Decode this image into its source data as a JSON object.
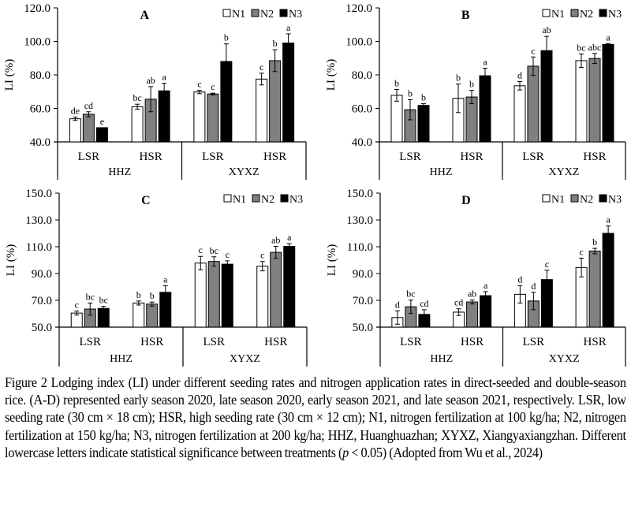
{
  "chart_data": [
    {
      "type": "bar",
      "panel": "A",
      "title": "A",
      "ylabel": "LI (%)",
      "ylim": [
        40,
        120
      ],
      "yticks": [
        "40.0",
        "60.0",
        "80.0",
        "100.0",
        "120.0"
      ],
      "yticks_values": [
        40,
        60,
        80,
        100,
        120
      ],
      "groups": [
        "HHZ",
        "XYXZ"
      ],
      "categories": [
        "LSR",
        "HSR",
        "LSR",
        "HSR"
      ],
      "category_group": [
        "HHZ",
        "HHZ",
        "XYXZ",
        "XYXZ"
      ],
      "legend": [
        "N1",
        "N2",
        "N3"
      ],
      "legend_position": "top-right",
      "series": [
        {
          "name": "N1",
          "values": [
            53.8,
            61.0,
            69.8,
            77.5
          ],
          "errors": [
            1.0,
            1.5,
            1.0,
            3.5
          ],
          "letters": [
            "de",
            "bc",
            "c",
            "c"
          ]
        },
        {
          "name": "N2",
          "values": [
            56.5,
            65.5,
            68.6,
            88.5
          ],
          "errors": [
            1.5,
            7.5,
            0.5,
            6.5
          ],
          "letters": [
            "cd",
            "ab",
            "c",
            "b"
          ]
        },
        {
          "name": "N3",
          "values": [
            48.5,
            70.5,
            88.0,
            99.0
          ],
          "errors": [
            0.0,
            4.5,
            10.5,
            5.5
          ],
          "letters": [
            "e",
            "a",
            "b",
            "a"
          ]
        }
      ]
    },
    {
      "type": "bar",
      "panel": "B",
      "title": "B",
      "ylabel": "LI (%)",
      "ylim": [
        40,
        120
      ],
      "yticks": [
        "40.0",
        "60.0",
        "80.0",
        "100.0",
        "120.0"
      ],
      "yticks_values": [
        40,
        60,
        80,
        100,
        120
      ],
      "groups": [
        "HHZ",
        "XYXZ"
      ],
      "categories": [
        "LSR",
        "HSR",
        "LSR",
        "HSR"
      ],
      "category_group": [
        "HHZ",
        "HHZ",
        "XYXZ",
        "XYXZ"
      ],
      "legend": [
        "N1",
        "N2",
        "N3"
      ],
      "legend_position": "top-right",
      "series": [
        {
          "name": "N1",
          "values": [
            67.8,
            66.0,
            73.5,
            88.5
          ],
          "errors": [
            3.5,
            8.5,
            2.5,
            4.0
          ],
          "letters": [
            "b",
            "b",
            "d",
            "bc"
          ]
        },
        {
          "name": "N2",
          "values": [
            59.2,
            66.8,
            85.2,
            89.8
          ],
          "errors": [
            6.0,
            4.0,
            5.5,
            3.0
          ],
          "letters": [
            "b",
            "b",
            "c",
            "abc"
          ]
        },
        {
          "name": "N3",
          "values": [
            61.8,
            79.5,
            94.5,
            98.2
          ],
          "errors": [
            1.0,
            4.5,
            8.5,
            0.5
          ],
          "letters": [
            "b",
            "a",
            "ab",
            "a"
          ]
        }
      ]
    },
    {
      "type": "bar",
      "panel": "C",
      "title": "C",
      "ylabel": "LI (%)",
      "ylim": [
        50,
        150
      ],
      "yticks": [
        "50.0",
        "70.0",
        "90.0",
        "110.0",
        "130.0",
        "150.0"
      ],
      "yticks_values": [
        50,
        70,
        90,
        110,
        130,
        150
      ],
      "groups": [
        "HHZ",
        "XYXZ"
      ],
      "categories": [
        "LSR",
        "HSR",
        "LSR",
        "HSR"
      ],
      "category_group": [
        "HHZ",
        "HHZ",
        "XYXZ",
        "XYXZ"
      ],
      "legend": [
        "N1",
        "N2",
        "N3"
      ],
      "legend_position": "top-right",
      "series": [
        {
          "name": "N1",
          "values": [
            60.5,
            68.0,
            97.8,
            95.5
          ],
          "errors": [
            1.5,
            1.5,
            5.0,
            3.5
          ],
          "letters": [
            "c",
            "b",
            "c",
            "c"
          ]
        },
        {
          "name": "N2",
          "values": [
            63.5,
            67.2,
            99.0,
            105.8
          ],
          "errors": [
            4.5,
            1.5,
            3.5,
            4.5
          ],
          "letters": [
            "bc",
            "b",
            "bc",
            "ab"
          ]
        },
        {
          "name": "N3",
          "values": [
            64.0,
            76.0,
            97.0,
            110.3
          ],
          "errors": [
            1.5,
            5.0,
            2.5,
            2.0
          ],
          "letters": [
            "bc",
            "a",
            "c",
            "a"
          ]
        }
      ]
    },
    {
      "type": "bar",
      "panel": "D",
      "title": "D",
      "ylabel": "LI (%)",
      "ylim": [
        50,
        150
      ],
      "yticks": [
        "50.0",
        "70.0",
        "90.0",
        "110.0",
        "130.0",
        "150.0"
      ],
      "yticks_values": [
        50,
        70,
        90,
        110,
        130,
        150
      ],
      "groups": [
        "HHZ",
        "XYXZ"
      ],
      "categories": [
        "LSR",
        "HSR",
        "LSR",
        "HSR"
      ],
      "category_group": [
        "HHZ",
        "HHZ",
        "XYXZ",
        "XYXZ"
      ],
      "legend": [
        "N1",
        "N2",
        "N3"
      ],
      "legend_position": "top-right",
      "series": [
        {
          "name": "N1",
          "values": [
            57.2,
            61.2,
            74.5,
            94.5
          ],
          "errors": [
            5.0,
            2.5,
            6.5,
            7.0
          ],
          "letters": [
            "d",
            "cd",
            "d",
            "c"
          ]
        },
        {
          "name": "N2",
          "values": [
            65.2,
            68.8,
            69.5,
            106.8
          ],
          "errors": [
            5.0,
            1.5,
            6.5,
            2.0
          ],
          "letters": [
            "bc",
            "ab",
            "d",
            "b"
          ]
        },
        {
          "name": "N3",
          "values": [
            59.5,
            73.5,
            85.5,
            120.0
          ],
          "errors": [
            3.5,
            3.0,
            7.0,
            5.5
          ],
          "letters": [
            "cd",
            "a",
            "c",
            "a"
          ]
        }
      ]
    }
  ],
  "series_colors": {
    "N1": "#ffffff",
    "N2": "#808080",
    "N3": "#000000"
  },
  "caption": {
    "label": "Figure 2",
    "text_before_p": " Lodging index (LI) under different seeding rates and nitrogen application rates in direct-seeded and double-season rice. (A-D) represented early season 2020, late season 2020, early season 2021, and late season 2021, respectively. LSR, low seeding rate (30 cm × 18 cm); HSR, high seeding rate (30 cm × 12 cm); N1, nitrogen fertilization at 100 kg/ha; N2, nitrogen fertilization at 150 kg/ha; N3, nitrogen fertilization at 200 kg/ha; HHZ, Huanghuazhan; XYXZ, Xiangyaxiangzhan. Different lowercase letters indicate statistical significance between treatments (",
    "p_symbol": "p",
    "text_after_p": " < 0.05) (Adopted from Wu et al., 2024)"
  }
}
